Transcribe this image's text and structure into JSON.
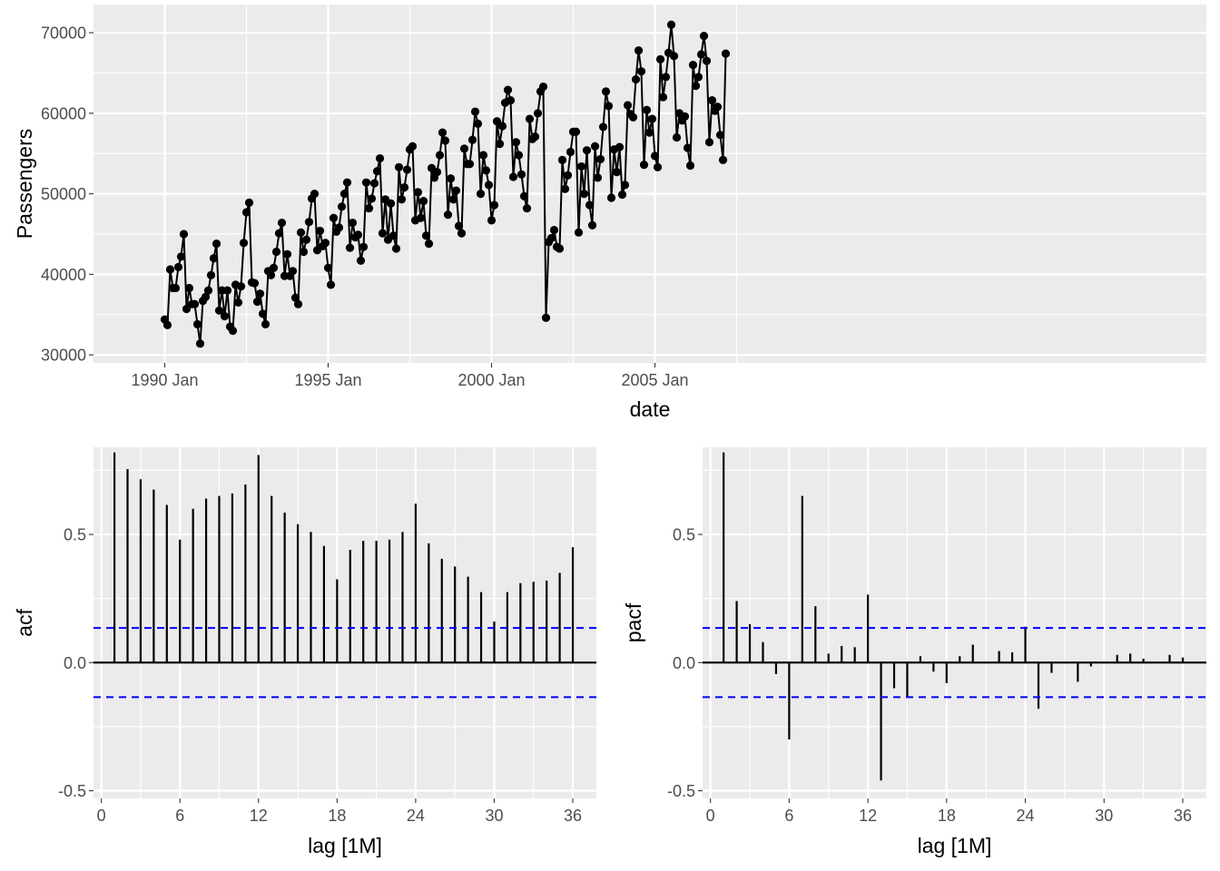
{
  "chart_data": [
    {
      "type": "line",
      "xlabel": "date",
      "ylabel": "Passengers",
      "x_ticks": [
        "1990 Jan",
        "1995 Jan",
        "2000 Jan",
        "2005 Jan"
      ],
      "y_ticks": [
        "30000",
        "40000",
        "50000",
        "60000",
        "70000"
      ],
      "ylim": [
        29000,
        73500
      ],
      "x_start": "1990 Jan",
      "x_end": "2007 Mar",
      "markers": true,
      "grid": true,
      "colors": {
        "line": "#000000",
        "panel": "#ebebeb",
        "grid": "#ffffff"
      },
      "series": [
        {
          "values": [
            34400,
            33700,
            40600,
            38300,
            38300,
            40900,
            42200,
            45000,
            35700,
            38300,
            36300,
            36300,
            33800,
            31400,
            36700,
            37200,
            38000,
            39900,
            42000,
            43800,
            35500,
            38000,
            34800,
            38000,
            33500,
            33000,
            38700,
            36500,
            38500,
            43900,
            47700,
            48900,
            39000,
            38900,
            36600,
            37600,
            35100,
            33800,
            40400,
            39900,
            40800,
            42800,
            45100,
            46400,
            39800,
            42500,
            39800,
            40400,
            37100,
            36300,
            45200,
            42800,
            44300,
            46500,
            49400,
            50000,
            43000,
            45400,
            43500,
            43900,
            40800,
            38700,
            47000,
            45300,
            45800,
            48400,
            50000,
            51400,
            43300,
            46400,
            44600,
            44900,
            41700,
            43400,
            51400,
            48200,
            49400,
            51300,
            52800,
            54400,
            45100,
            49300,
            44300,
            48800,
            44800,
            43200,
            53300,
            49300,
            50800,
            53000,
            55500,
            55900,
            46700,
            50200,
            47000,
            49100,
            44800,
            43800,
            53200,
            52000,
            52700,
            54800,
            57600,
            56600,
            47400,
            51900,
            49300,
            50400,
            46000,
            45100,
            55600,
            53700,
            53700,
            56700,
            60200,
            58700,
            50000,
            54800,
            52900,
            51100,
            46700,
            48600,
            59000,
            56200,
            58400,
            61300,
            62900,
            61600,
            52100,
            56400,
            54800,
            52400,
            49700,
            48200,
            59300,
            56800,
            57100,
            60000,
            62700,
            63300,
            34600,
            44000,
            44500,
            45500,
            43400,
            43200,
            54200,
            50600,
            52300,
            55200,
            57700,
            57700,
            45200,
            53400,
            50000,
            55400,
            48600,
            46100,
            55900,
            52000,
            54300,
            58300,
            62700,
            60900,
            49500,
            55500,
            52700,
            55800,
            49900,
            51100,
            61000,
            59900,
            59500,
            64200,
            67800,
            65200,
            53600,
            60400,
            57600,
            59300,
            54700,
            53300,
            66700,
            62000,
            64500,
            67500,
            71000,
            67100,
            57000,
            60000,
            59100,
            59600,
            55700,
            53500,
            66000,
            63400,
            64500,
            67300,
            69600,
            66500,
            56400,
            61600,
            60300,
            60800,
            57300,
            54200,
            67400
          ]
        }
      ]
    },
    {
      "type": "bar",
      "xlabel": "lag [1M]",
      "ylabel": "acf",
      "x_ticks": [
        "0",
        "6",
        "12",
        "18",
        "24",
        "30",
        "36"
      ],
      "y_ticks": [
        "-0.5",
        "0.0",
        "0.5"
      ],
      "xlim": [
        -0.6,
        37.8
      ],
      "ylim": [
        -0.53,
        0.84
      ],
      "ci": 0.135,
      "grid": true,
      "colors": {
        "bar": "#000000",
        "ci": "#0000ff",
        "panel": "#ebebeb",
        "grid": "#ffffff"
      },
      "x": [
        1,
        2,
        3,
        4,
        5,
        6,
        7,
        8,
        9,
        10,
        11,
        12,
        13,
        14,
        15,
        16,
        17,
        18,
        19,
        20,
        21,
        22,
        23,
        24,
        25,
        26,
        27,
        28,
        29,
        30,
        31,
        32,
        33,
        34,
        35,
        36
      ],
      "values": [
        0.82,
        0.755,
        0.715,
        0.675,
        0.615,
        0.48,
        0.6,
        0.64,
        0.65,
        0.66,
        0.695,
        0.81,
        0.65,
        0.585,
        0.54,
        0.51,
        0.455,
        0.325,
        0.44,
        0.475,
        0.475,
        0.48,
        0.51,
        0.62,
        0.465,
        0.405,
        0.375,
        0.335,
        0.275,
        0.16,
        0.275,
        0.31,
        0.315,
        0.32,
        0.35,
        0.45
      ]
    },
    {
      "type": "bar",
      "xlabel": "lag [1M]",
      "ylabel": "pacf",
      "x_ticks": [
        "0",
        "6",
        "12",
        "18",
        "24",
        "30",
        "36"
      ],
      "y_ticks": [
        "-0.5",
        "0.0",
        "0.5"
      ],
      "xlim": [
        -0.6,
        37.8
      ],
      "ylim": [
        -0.53,
        0.84
      ],
      "ci": 0.135,
      "grid": true,
      "colors": {
        "bar": "#000000",
        "ci": "#0000ff",
        "panel": "#ebebeb",
        "grid": "#ffffff"
      },
      "x": [
        1,
        2,
        3,
        4,
        5,
        6,
        7,
        8,
        9,
        10,
        11,
        12,
        13,
        14,
        15,
        16,
        17,
        18,
        19,
        20,
        21,
        22,
        23,
        24,
        25,
        26,
        27,
        28,
        29,
        30,
        31,
        32,
        33,
        34,
        35,
        36
      ],
      "values": [
        0.82,
        0.24,
        0.15,
        0.08,
        -0.045,
        -0.3,
        0.65,
        0.22,
        0.035,
        0.065,
        0.06,
        0.265,
        -0.46,
        -0.1,
        -0.135,
        0.025,
        -0.035,
        -0.08,
        0.025,
        0.07,
        0.0,
        0.045,
        0.04,
        0.14,
        -0.18,
        -0.04,
        0.0,
        -0.075,
        -0.015,
        0.0,
        0.03,
        0.035,
        0.015,
        0.0,
        0.03,
        0.02
      ]
    }
  ]
}
